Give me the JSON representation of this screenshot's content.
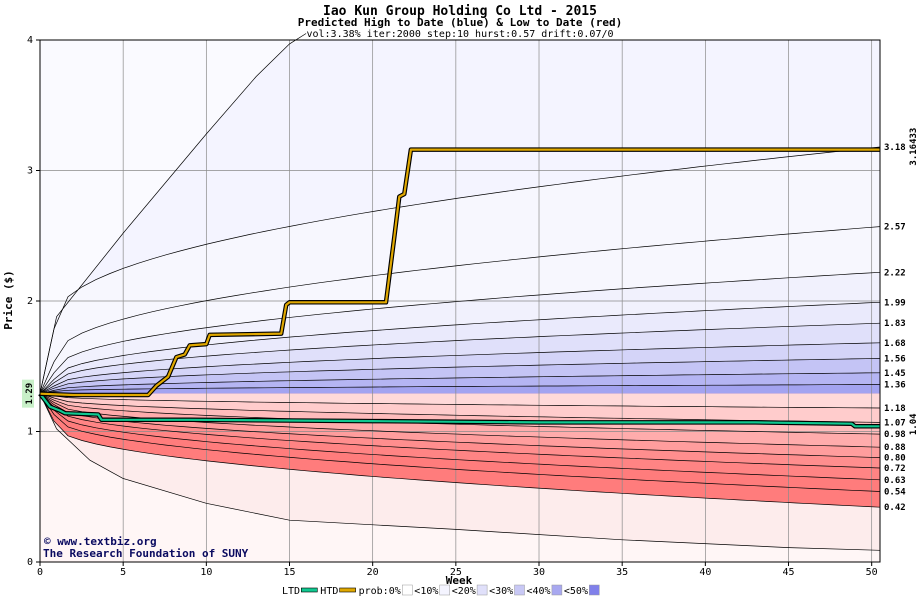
{
  "chart_data": {
    "type": "area",
    "title": "Iao Kun Group Holding Co Ltd - 2015",
    "subtitle": "Predicted High to Date (blue) &  Low to Date (red)",
    "params": "vol:3.38% iter:2000 step:10 hurst:0.57 drift:0.07/0",
    "xlabel": "Week",
    "ylabel": "Price ($)",
    "xlim": [
      0,
      50.5
    ],
    "ylim": [
      0,
      4
    ],
    "x_ticks": [
      0,
      5,
      10,
      15,
      20,
      25,
      30,
      35,
      40,
      45,
      50
    ],
    "y_ticks": [
      0,
      1,
      2,
      3,
      4
    ],
    "start_label": "1.29",
    "start_price": 1.29,
    "high_value_label": "3.16433",
    "low_value_label": "1.04",
    "high_band_levels": [
      {
        "label": "1.36",
        "value": 1.36,
        "week1": 1.31
      },
      {
        "label": "1.45",
        "value": 1.45,
        "week1": 1.32
      },
      {
        "label": "1.56",
        "value": 1.56,
        "week1": 1.34
      },
      {
        "label": "1.68",
        "value": 1.68,
        "week1": 1.36
      },
      {
        "label": "1.83",
        "value": 1.83,
        "week1": 1.39
      },
      {
        "label": "1.99",
        "value": 1.99,
        "week1": 1.42
      },
      {
        "label": "2.22",
        "value": 2.22,
        "week1": 1.48
      },
      {
        "label": "2.57",
        "value": 2.57,
        "week1": 1.58
      },
      {
        "label": "3.18",
        "value": 3.18,
        "week1": 1.88
      }
    ],
    "low_band_levels": [
      {
        "label": "1.18",
        "value": 1.18,
        "week1": 1.27
      },
      {
        "label": "1.07",
        "value": 1.07,
        "week1": 1.25
      },
      {
        "label": "0.98",
        "value": 0.98,
        "week1": 1.23
      },
      {
        "label": "0.88",
        "value": 0.88,
        "week1": 1.21
      },
      {
        "label": "0.80",
        "value": 0.8,
        "week1": 1.19
      },
      {
        "label": "0.72",
        "value": 0.72,
        "week1": 1.17
      },
      {
        "label": "0.63",
        "value": 0.63,
        "week1": 1.14
      },
      {
        "label": "0.54",
        "value": 0.54,
        "week1": 1.1
      },
      {
        "label": "0.42",
        "value": 0.42,
        "week1": 1.04
      }
    ],
    "max_envelope": [
      [
        0,
        1.29
      ],
      [
        1,
        1.88
      ],
      [
        5,
        2.52
      ],
      [
        10,
        3.28
      ],
      [
        13,
        3.72
      ],
      [
        15,
        3.97
      ],
      [
        16,
        4.05
      ]
    ],
    "min_envelope": [
      [
        0,
        1.29
      ],
      [
        1,
        1.02
      ],
      [
        3,
        0.78
      ],
      [
        5,
        0.64
      ],
      [
        10,
        0.45
      ],
      [
        15,
        0.32
      ],
      [
        25,
        0.25
      ],
      [
        35,
        0.17
      ],
      [
        45,
        0.11
      ],
      [
        50.5,
        0.09
      ]
    ],
    "htd_series": {
      "name": "HTD",
      "points": [
        [
          0,
          1.29
        ],
        [
          2,
          1.28
        ],
        [
          6.5,
          1.28
        ],
        [
          7,
          1.35
        ],
        [
          7.7,
          1.42
        ],
        [
          8.2,
          1.57
        ],
        [
          8.7,
          1.59
        ],
        [
          9,
          1.66
        ],
        [
          10,
          1.67
        ],
        [
          10.2,
          1.74
        ],
        [
          14.5,
          1.75
        ],
        [
          14.8,
          1.97
        ],
        [
          15,
          1.99
        ],
        [
          20.8,
          1.99
        ],
        [
          21.3,
          2.49
        ],
        [
          21.6,
          2.8
        ],
        [
          21.9,
          2.82
        ],
        [
          22.3,
          3.16
        ],
        [
          50.5,
          3.16
        ]
      ]
    },
    "ltd_series": {
      "name": "LTD",
      "points": [
        [
          0,
          1.29
        ],
        [
          0.6,
          1.19
        ],
        [
          1.2,
          1.16
        ],
        [
          1.5,
          1.14
        ],
        [
          3.5,
          1.13
        ],
        [
          3.7,
          1.09
        ],
        [
          9,
          1.09
        ],
        [
          20,
          1.08
        ],
        [
          30,
          1.07
        ],
        [
          43,
          1.07
        ],
        [
          48.8,
          1.06
        ],
        [
          49,
          1.04
        ],
        [
          50.5,
          1.04
        ]
      ]
    },
    "legend": [
      {
        "label": "LTD",
        "kind": "line",
        "color": "#10c890"
      },
      {
        "label": "HTD",
        "kind": "line",
        "color": "#e0a800"
      },
      {
        "label": "prob:0%",
        "kind": "swatch",
        "color": "#ffffff"
      },
      {
        "label": "<10%",
        "kind": "swatch",
        "color": "#f4f4ff"
      },
      {
        "label": "<20%",
        "kind": "swatch",
        "color": "#e0e0fa"
      },
      {
        "label": "<30%",
        "kind": "swatch",
        "color": "#c8c8f5"
      },
      {
        "label": "<40%",
        "kind": "swatch",
        "color": "#a8a8f0"
      },
      {
        "label": "<50%",
        "kind": "swatch",
        "color": "#8080ea"
      }
    ],
    "colors": {
      "high_bands": [
        "#a3a3f0",
        "#b5b5f3",
        "#c4c4f5",
        "#d4d4f8",
        "#e0e0fa",
        "#eaeafc",
        "#f1f1fd",
        "#f7f7fe"
      ],
      "high_top": "#fafaff",
      "low_bands": [
        "#ffd9d9",
        "#ffcccc",
        "#ffbcbc",
        "#ffacac",
        "#ff9d9d",
        "#ff8e8e",
        "#ff8484",
        "#ff7c7c"
      ],
      "low_outer": "#fdecec",
      "low_floor": "#fff6f6",
      "htd": "#e0a800",
      "ltd": "#10c890"
    }
  },
  "credit": {
    "site": "www.textbiz.org",
    "org": "The Research Foundation of SUNY"
  }
}
